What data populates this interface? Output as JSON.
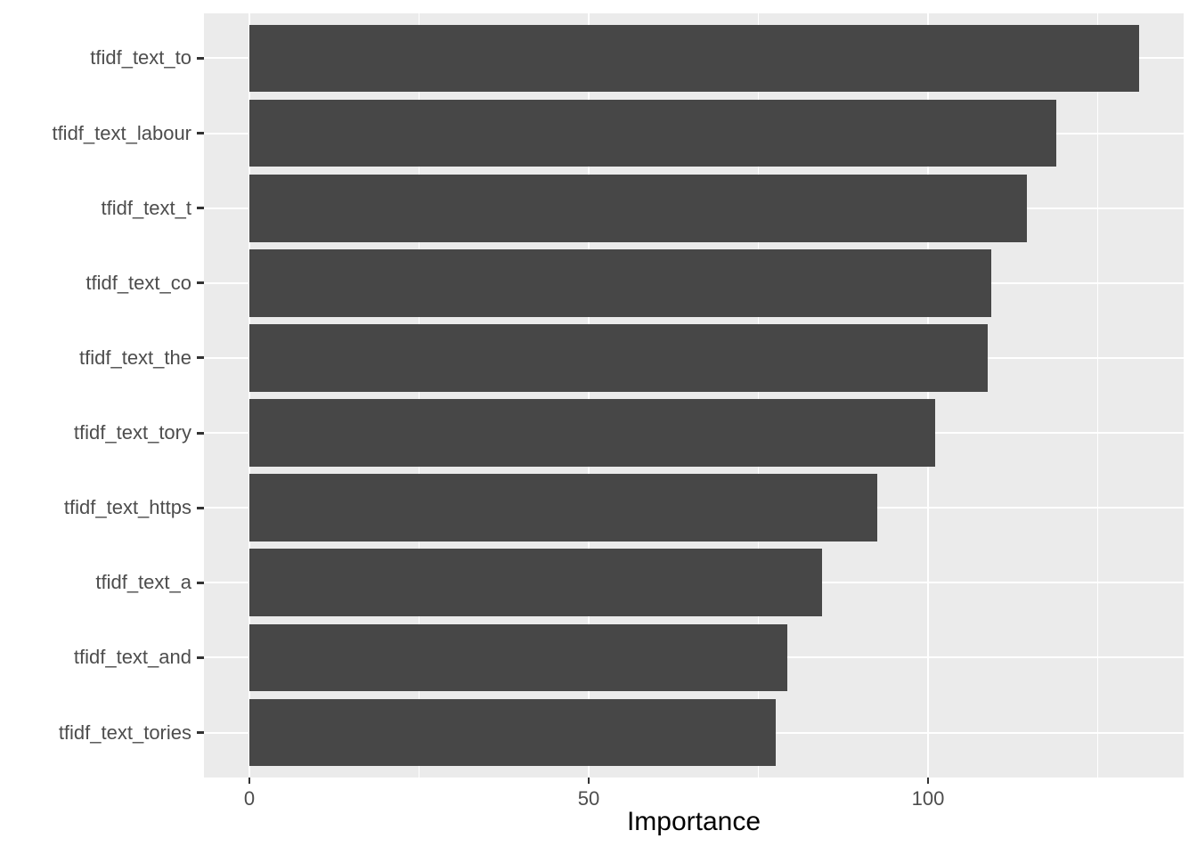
{
  "chart_data": {
    "type": "bar",
    "orientation": "horizontal",
    "title": "",
    "xlabel": "Importance",
    "ylabel": "",
    "categories": [
      "tfidf_text_to",
      "tfidf_text_labour",
      "tfidf_text_t",
      "tfidf_text_co",
      "tfidf_text_the",
      "tfidf_text_tory",
      "tfidf_text_https",
      "tfidf_text_a",
      "tfidf_text_and",
      "tfidf_text_tories"
    ],
    "values": [
      131.1,
      118.9,
      114.6,
      109.3,
      108.8,
      101.0,
      92.5,
      84.4,
      79.3,
      77.6
    ],
    "x_ticks": [
      0,
      50,
      100
    ],
    "x_tick_labels": [
      "0",
      "50",
      "100"
    ],
    "x_minor_gridlines": [
      25,
      75,
      125
    ],
    "xlim": [
      -6.6,
      137.7
    ],
    "bar_width_fraction": 0.9,
    "grid": true,
    "legend": false,
    "colors": {
      "bar": "#474747",
      "panel_background": "#EBEBEB",
      "gridline": "#FFFFFF",
      "tick_mark": "#333333",
      "tick_label": "#4D4D4D",
      "axis_title": "#000000",
      "figure_background": "#FFFFFF"
    }
  }
}
